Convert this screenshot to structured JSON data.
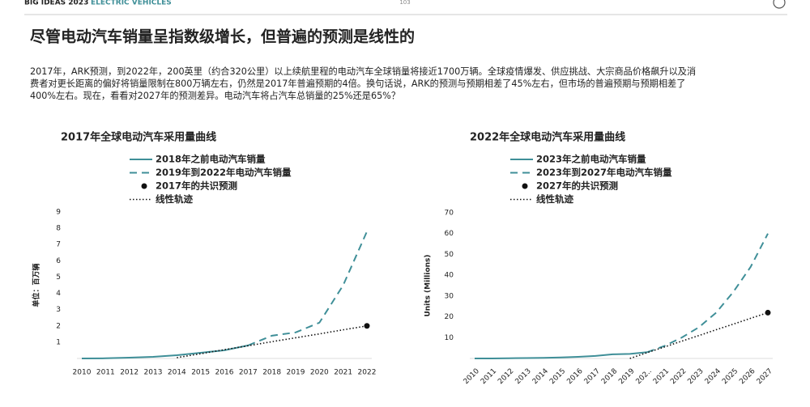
{
  "header": {
    "brand": "BIG IDEAS 2023",
    "section": "ELECTRIC VEHICLES",
    "page": "103",
    "title": "尽管电动汽车销量呈指数级增长，但普遍的预测是线性的",
    "body": [
      "2017年，ARK预测，到2022年，200英里（约合320公里）以上续航里程的电动汽车全球销量将接近1700万辆。全球疫情爆发、供应挑战、大宗商品价格飙升以及消",
      "费者对更长距离的偏好将销量限制在800万辆左右，仍然是2017年普遍预期的4倍。换句话说，ARK的预测与预期相差了45%左右，但市场的普遍预期与预期相差了",
      "400%左右。现在，看看对2027年的预测差异。电动汽车将占汽车总销量的25%还是65%？"
    ]
  },
  "chart_data": [
    {
      "type": "line",
      "title": "2017年全球电动汽车采用量曲线",
      "y_label": "单位：百万辆",
      "categories": [
        "2010",
        "2011",
        "2012",
        "2013",
        "2014",
        "2015",
        "2016",
        "2017",
        "2018",
        "2019",
        "2020",
        "2021",
        "2022"
      ],
      "ylim": [
        0,
        9
      ],
      "yticks": [
        1,
        2,
        3,
        4,
        5,
        6,
        7,
        8,
        9
      ],
      "series": [
        {
          "name": "2018年之前电动汽车销量",
          "color": "#3f8f98",
          "style": "solid",
          "values": [
            0,
            0.01,
            0.05,
            0.1,
            0.2,
            0.35,
            0.5,
            0.8,
            null,
            null,
            null,
            null,
            null
          ]
        },
        {
          "name": "2019年到2022年电动汽车销量",
          "color": "#3f8f98",
          "style": "dashed",
          "values": [
            null,
            null,
            null,
            null,
            null,
            null,
            null,
            0.8,
            1.4,
            1.6,
            2.2,
            4.5,
            7.8
          ]
        },
        {
          "name": "2017年的共识预测",
          "color": "#111111",
          "style": "dot",
          "values": [
            null,
            null,
            null,
            null,
            null,
            null,
            null,
            null,
            null,
            null,
            null,
            null,
            2.0
          ]
        },
        {
          "name": "线性轨迹",
          "color": "#111111",
          "style": "dotted",
          "values": [
            null,
            null,
            null,
            null,
            0.05,
            0.29,
            0.54,
            0.78,
            1.03,
            1.27,
            1.51,
            1.76,
            2.0
          ]
        }
      ]
    },
    {
      "type": "line",
      "title": "2022年全球电动汽车采用量曲线",
      "y_label": "Units (Millions)",
      "categories": [
        "2010",
        "2011",
        "2012",
        "2013",
        "2014",
        "2015",
        "2016",
        "2017",
        "2018",
        "2019",
        "202..",
        "2021",
        "2022",
        "2023",
        "2024",
        "2025",
        "2026",
        "2027"
      ],
      "ylim": [
        0,
        70
      ],
      "yticks": [
        10,
        20,
        30,
        40,
        50,
        60,
        70
      ],
      "series": [
        {
          "name": "2023年之前电动汽车销量",
          "color": "#3f8f98",
          "style": "solid",
          "values": [
            0,
            0,
            0.1,
            0.2,
            0.3,
            0.5,
            0.8,
            1.2,
            2,
            2.2,
            3,
            null,
            null,
            null,
            null,
            null,
            null,
            null
          ]
        },
        {
          "name": "2023年到2027年电动汽车销量",
          "color": "#3f8f98",
          "style": "dashed",
          "values": [
            null,
            null,
            null,
            null,
            null,
            null,
            null,
            null,
            null,
            null,
            3,
            6,
            10,
            15,
            22,
            32,
            44,
            60
          ]
        },
        {
          "name": "2027年的共识预测",
          "color": "#111111",
          "style": "dot",
          "values": [
            null,
            null,
            null,
            null,
            null,
            null,
            null,
            null,
            null,
            null,
            null,
            null,
            null,
            null,
            null,
            null,
            null,
            22
          ]
        },
        {
          "name": "线性轨迹",
          "color": "#111111",
          "style": "dotted",
          "values": [
            null,
            null,
            null,
            null,
            null,
            null,
            null,
            null,
            null,
            0,
            2.8,
            5.5,
            8.3,
            11,
            13.8,
            16.5,
            19.3,
            22
          ]
        }
      ]
    }
  ]
}
